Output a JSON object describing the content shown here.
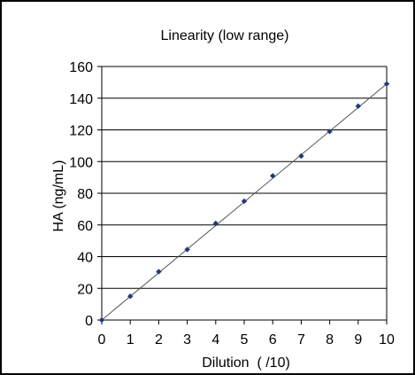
{
  "chart_data": {
    "type": "scatter",
    "title": "Linearity (low range)",
    "xlabel": "Dilution  ( /10)",
    "ylabel": "HA (ng/mL)",
    "xlim": [
      0,
      10
    ],
    "ylim": [
      0,
      160
    ],
    "x_ticks": [
      "0",
      "1",
      "2",
      "3",
      "4",
      "5",
      "6",
      "7",
      "8",
      "9",
      "10"
    ],
    "y_ticks": [
      "0",
      "20",
      "40",
      "60",
      "80",
      "100",
      "120",
      "140",
      "160"
    ],
    "grid": "horizontal",
    "trendline": {
      "x": [
        0,
        10
      ],
      "y": [
        0,
        149
      ]
    },
    "series": [
      {
        "x": [
          0,
          1,
          2,
          3,
          4,
          5,
          6,
          7,
          8,
          9,
          10
        ],
        "y": [
          0,
          15,
          30.5,
          44.5,
          61,
          75,
          91,
          103.5,
          119,
          135,
          149
        ]
      }
    ],
    "colors": {
      "marker": "#1f3a7a",
      "trendline": "#555555",
      "gridline": "#000000",
      "axis": "#000000"
    }
  }
}
